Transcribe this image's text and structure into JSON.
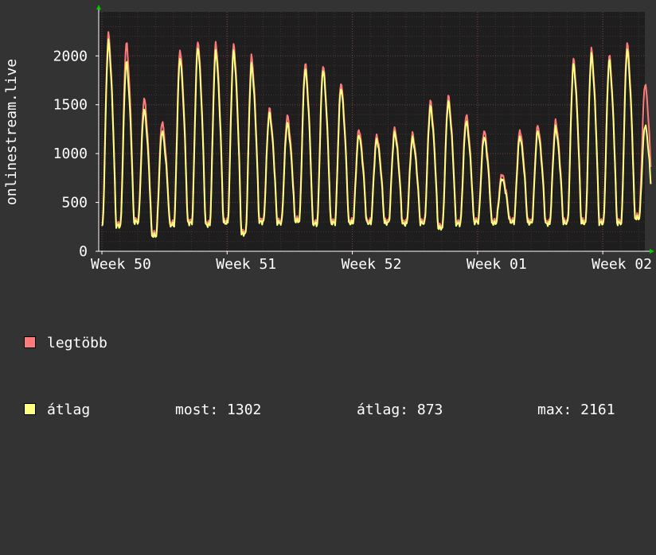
{
  "chart_data": {
    "type": "area",
    "title": "",
    "ylabel": "onlinestream.live",
    "xlabel": "",
    "ylim": [
      0,
      2450
    ],
    "yticks": [
      0,
      500,
      1000,
      1500,
      2000
    ],
    "ytick_labels": [
      "0",
      "500",
      "1000",
      "1500",
      "2000"
    ],
    "xticks": [
      {
        "label": "Week 50",
        "day": 0
      },
      {
        "label": "Week 51",
        "day": 7
      },
      {
        "label": "Week 52",
        "day": 14
      },
      {
        "label": "Week 01",
        "day": 21
      },
      {
        "label": "Week 02",
        "day": 28
      }
    ],
    "xlim_days": [
      0,
      29.5
    ],
    "grid": true,
    "colors": {
      "background": "#333333",
      "plot_bg": "#1e1e1e",
      "grid": "#5a3838",
      "max_series": "#ff7b7b",
      "avg_series": "#ffff80"
    },
    "series": [
      {
        "name": "legtöbb",
        "color": "#ff7b7b"
      },
      {
        "name": "átlag",
        "color": "#ffff80"
      }
    ],
    "daily_peaks": [
      [
        2220,
        2160
      ],
      [
        2130,
        1950
      ],
      [
        1560,
        1460
      ],
      [
        1320,
        1240
      ],
      [
        2060,
        1990
      ],
      [
        2150,
        2100
      ],
      [
        2130,
        2060
      ],
      [
        2110,
        2060
      ],
      [
        1990,
        1920
      ],
      [
        1450,
        1420
      ],
      [
        1380,
        1320
      ],
      [
        1920,
        1880
      ],
      [
        1900,
        1870
      ],
      [
        1720,
        1680
      ],
      [
        1240,
        1200
      ],
      [
        1180,
        1150
      ],
      [
        1250,
        1220
      ],
      [
        1190,
        1160
      ],
      [
        1530,
        1490
      ],
      [
        1580,
        1540
      ],
      [
        1390,
        1340
      ],
      [
        1230,
        1180
      ],
      [
        780,
        750
      ],
      [
        1230,
        1180
      ],
      [
        1280,
        1240
      ],
      [
        1320,
        1270
      ],
      [
        1960,
        1920
      ],
      [
        2060,
        2020
      ],
      [
        2000,
        1970
      ],
      [
        2130,
        2080
      ],
      [
        1710,
        1300
      ]
    ],
    "daily_troughs": [
      270,
      310,
      170,
      280,
      300,
      280,
      300,
      190,
      310,
      300,
      320,
      290,
      300,
      300,
      300,
      300,
      290,
      300,
      250,
      290,
      310,
      300,
      310,
      300,
      290,
      300,
      300,
      300,
      300,
      350
    ],
    "stats": {
      "most": "1302",
      "atlag": "873",
      "max": "2161"
    }
  },
  "legend": {
    "max_label": "legtöbb",
    "avg_label": "átlag",
    "most_text": "most: 1302",
    "atlag_text": "átlag: 873",
    "max_text": "max: 2161"
  }
}
